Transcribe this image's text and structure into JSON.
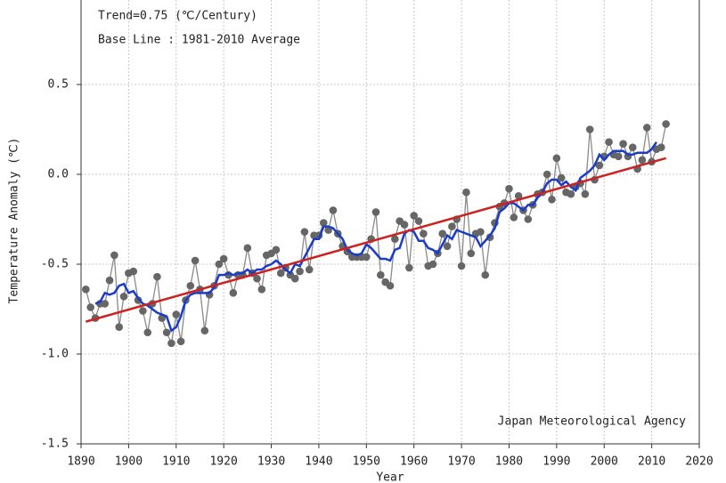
{
  "chart_data": {
    "type": "line",
    "x_label": "Year",
    "y_label": "Temperature Anomaly (℃)",
    "annotations": [
      "Trend=0.75 (℃/Century)",
      "Base Line : 1981-2010 Average",
      "Japan Meteorological Agency"
    ],
    "x": [
      1891,
      1892,
      1893,
      1894,
      1895,
      1896,
      1897,
      1898,
      1899,
      1900,
      1901,
      1902,
      1903,
      1904,
      1905,
      1906,
      1907,
      1908,
      1909,
      1910,
      1911,
      1912,
      1913,
      1914,
      1915,
      1916,
      1917,
      1918,
      1919,
      1920,
      1921,
      1922,
      1923,
      1924,
      1925,
      1926,
      1927,
      1928,
      1929,
      1930,
      1931,
      1932,
      1933,
      1934,
      1935,
      1936,
      1937,
      1938,
      1939,
      1940,
      1941,
      1942,
      1943,
      1944,
      1945,
      1946,
      1947,
      1948,
      1949,
      1950,
      1951,
      1952,
      1953,
      1954,
      1955,
      1956,
      1957,
      1958,
      1959,
      1960,
      1961,
      1962,
      1963,
      1964,
      1965,
      1966,
      1967,
      1968,
      1969,
      1970,
      1971,
      1972,
      1973,
      1974,
      1975,
      1976,
      1977,
      1978,
      1979,
      1980,
      1981,
      1982,
      1983,
      1984,
      1985,
      1986,
      1987,
      1988,
      1989,
      1990,
      1991,
      1992,
      1993,
      1994,
      1995,
      1996,
      1997,
      1998,
      1999,
      2000,
      2001,
      2002,
      2003,
      2004,
      2005,
      2006,
      2007,
      2008,
      2009,
      2010,
      2011,
      2012,
      2013
    ],
    "series": [
      {
        "color": "#666666",
        "markers": true,
        "values": [
          -0.64,
          -0.74,
          -0.8,
          -0.72,
          -0.72,
          -0.59,
          -0.45,
          -0.85,
          -0.68,
          -0.55,
          -0.54,
          -0.7,
          -0.76,
          -0.88,
          -0.72,
          -0.57,
          -0.8,
          -0.88,
          -0.94,
          -0.78,
          -0.93,
          -0.7,
          -0.62,
          -0.48,
          -0.64,
          -0.87,
          -0.67,
          -0.62,
          -0.5,
          -0.47,
          -0.56,
          -0.66,
          -0.56,
          -0.56,
          -0.41,
          -0.55,
          -0.58,
          -0.64,
          -0.45,
          -0.44,
          -0.42,
          -0.55,
          -0.52,
          -0.56,
          -0.58,
          -0.54,
          -0.32,
          -0.53,
          -0.34,
          -0.34,
          -0.27,
          -0.31,
          -0.2,
          -0.33,
          -0.4,
          -0.43,
          -0.46,
          -0.46,
          -0.46,
          -0.46,
          -0.36,
          -0.21,
          -0.56,
          -0.6,
          -0.62,
          -0.36,
          -0.26,
          -0.28,
          -0.52,
          -0.23,
          -0.26,
          -0.33,
          -0.51,
          -0.5,
          -0.44,
          -0.33,
          -0.4,
          -0.29,
          -0.25,
          -0.51,
          -0.1,
          -0.44,
          -0.33,
          -0.32,
          -0.56,
          -0.35,
          -0.27,
          -0.18,
          -0.16,
          -0.08,
          -0.24,
          -0.12,
          -0.2,
          -0.25,
          -0.17,
          -0.11,
          -0.1,
          0.0,
          -0.14,
          0.09,
          -0.02,
          -0.1,
          -0.11,
          -0.07,
          -0.05,
          -0.11,
          0.25,
          -0.03,
          0.05,
          0.1,
          0.18,
          0.11,
          0.1,
          0.17,
          0.1,
          0.15,
          0.03,
          0.08,
          0.26,
          0.07,
          0.14,
          0.15,
          0.28
        ]
      },
      {
        "color": "#1a3cc8",
        "markers": false,
        "values": [
          null,
          null,
          -0.72,
          -0.71,
          -0.66,
          -0.67,
          -0.66,
          -0.62,
          -0.61,
          -0.66,
          -0.65,
          -0.69,
          -0.72,
          -0.73,
          -0.75,
          -0.77,
          -0.78,
          -0.79,
          -0.87,
          -0.85,
          -0.79,
          -0.7,
          -0.67,
          -0.66,
          -0.66,
          -0.66,
          -0.66,
          -0.63,
          -0.56,
          -0.56,
          -0.55,
          -0.56,
          -0.55,
          -0.55,
          -0.53,
          -0.55,
          -0.53,
          -0.53,
          -0.51,
          -0.5,
          -0.48,
          -0.5,
          -0.53,
          -0.55,
          -0.5,
          -0.51,
          -0.46,
          -0.41,
          -0.36,
          -0.36,
          -0.29,
          -0.29,
          -0.3,
          -0.33,
          -0.36,
          -0.42,
          -0.44,
          -0.45,
          -0.44,
          -0.39,
          -0.41,
          -0.44,
          -0.47,
          -0.47,
          -0.48,
          -0.42,
          -0.41,
          -0.33,
          -0.31,
          -0.32,
          -0.37,
          -0.37,
          -0.41,
          -0.42,
          -0.44,
          -0.39,
          -0.34,
          -0.36,
          -0.31,
          -0.32,
          -0.33,
          -0.34,
          -0.35,
          -0.4,
          -0.37,
          -0.34,
          -0.3,
          -0.21,
          -0.19,
          -0.16,
          -0.16,
          -0.18,
          -0.2,
          -0.17,
          -0.17,
          -0.13,
          -0.1,
          -0.05,
          -0.03,
          -0.03,
          -0.06,
          -0.04,
          -0.07,
          -0.09,
          -0.02,
          0.0,
          0.02,
          0.05,
          0.11,
          0.08,
          0.11,
          0.13,
          0.13,
          0.13,
          0.11,
          0.11,
          0.12,
          0.12,
          0.12,
          0.14,
          0.18,
          null,
          null
        ]
      },
      {
        "color": "#cc2222",
        "markers": false,
        "x": [
          1891,
          2013
        ],
        "values": [
          -0.82,
          0.09
        ]
      }
    ],
    "xlim": [
      1890,
      2020
    ],
    "xticks": [
      1890,
      1900,
      1910,
      1920,
      1930,
      1940,
      1950,
      1960,
      1970,
      1980,
      1990,
      2000,
      2010,
      2020
    ],
    "ylim": [
      -1.5,
      1.0
    ],
    "yticks": [
      -1.5,
      {
        "value": -1.0,
        "label": "-1.0"
      },
      -0.5,
      {
        "value": 0,
        "label": "0.0"
      },
      0.5
    ],
    "grid": true
  }
}
